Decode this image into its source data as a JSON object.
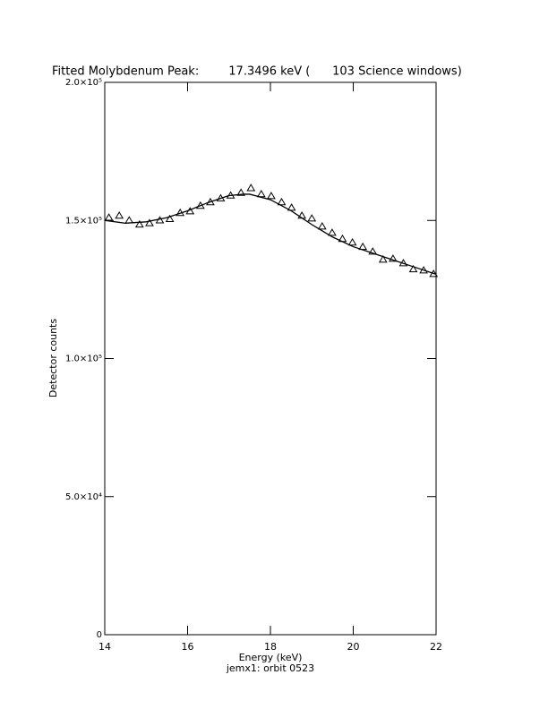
{
  "chart_data": {
    "type": "scatter",
    "title": "Fitted Molybdenum Peak:        17.3496 keV (      103 Science windows)",
    "x_label": "Energy (keV)",
    "y_label": "Detector counts",
    "note": "jemx1: orbit 0523",
    "xlim": [
      14,
      22
    ],
    "xticks": [
      14,
      16,
      18,
      20,
      22
    ],
    "ylim": [
      0,
      200000
    ],
    "yticks": [
      0,
      {
        "value": 50000,
        "label": "5.0×10⁴"
      },
      {
        "value": 100000,
        "label": "1.0×10⁵"
      },
      {
        "value": 150000,
        "label": "1.5×10⁵"
      },
      {
        "value": 200000,
        "label": "2.0×10⁵"
      }
    ],
    "color": "#000000",
    "series": [
      {
        "style": "markers",
        "marker": "triangle",
        "x": [
          14.1,
          14.35,
          14.59,
          14.84,
          15.08,
          15.33,
          15.57,
          15.82,
          16.06,
          16.31,
          16.55,
          16.8,
          17.04,
          17.29,
          17.53,
          17.78,
          18.02,
          18.27,
          18.51,
          18.76,
          19.0,
          19.25,
          19.49,
          19.74,
          19.98,
          20.23,
          20.47,
          20.72,
          20.96,
          21.21,
          21.45,
          21.7,
          21.94
        ],
        "values": [
          151000,
          151700,
          150000,
          148500,
          149000,
          150000,
          150500,
          152700,
          153300,
          155300,
          156600,
          158000,
          159000,
          160000,
          161700,
          159500,
          158800,
          156600,
          154600,
          151700,
          150700,
          147800,
          145500,
          143300,
          142000,
          140400,
          138700,
          135800,
          136100,
          134500,
          132300,
          131900,
          130600
        ]
      },
      {
        "style": "line",
        "x": [
          14,
          14.5,
          15,
          15.5,
          16,
          16.5,
          17,
          17.35,
          17.5,
          18,
          18.5,
          19,
          19.5,
          20,
          20.5,
          21,
          21.5,
          22
        ],
        "values": [
          150000,
          149000,
          149500,
          151000,
          153500,
          156500,
          159000,
          159500,
          159500,
          157500,
          153500,
          148500,
          144000,
          140500,
          138000,
          135500,
          133000,
          130500
        ]
      }
    ]
  }
}
